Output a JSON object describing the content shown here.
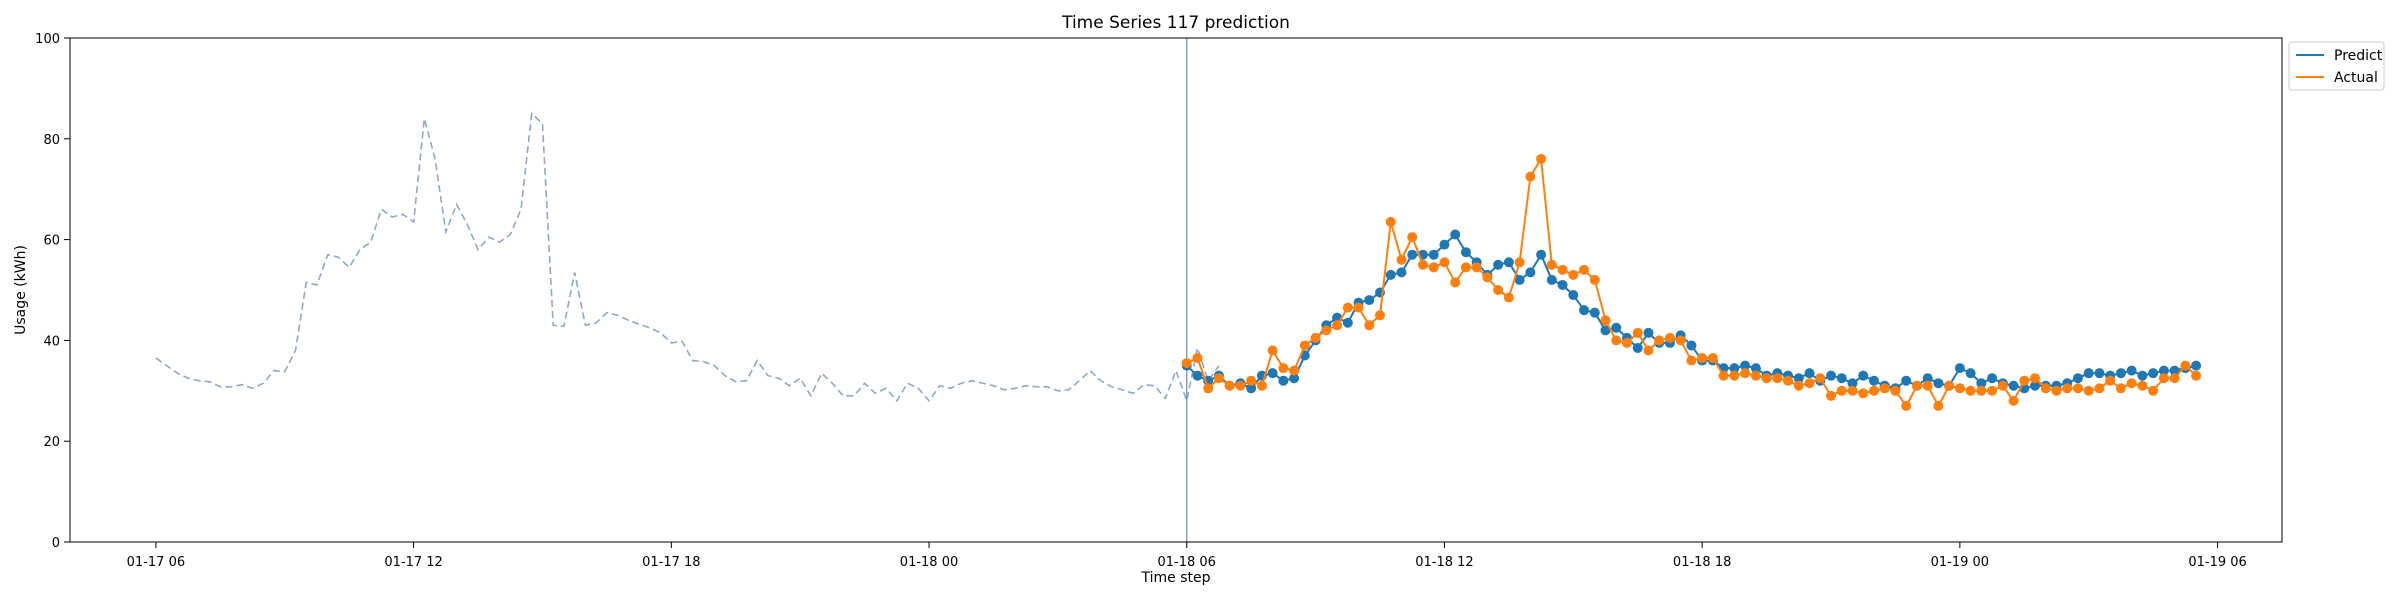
{
  "chart_data": {
    "type": "line",
    "title": "Time Series 117 prediction",
    "xlabel": "Time step",
    "ylabel": "Usage (kWh)",
    "ylim": [
      0,
      100
    ],
    "yticks": [
      0,
      20,
      40,
      60,
      80,
      100
    ],
    "x_unit": "timestamp, hourly ticks every 6 h",
    "xlim": [
      "2024-01-17T04:00",
      "2024-01-19T07:30"
    ],
    "xticks": [
      {
        "t": "2024-01-17T06:00",
        "label": "01-17 06"
      },
      {
        "t": "2024-01-17T12:00",
        "label": "01-17 12"
      },
      {
        "t": "2024-01-17T18:00",
        "label": "01-17 18"
      },
      {
        "t": "2024-01-18T00:00",
        "label": "01-18 00"
      },
      {
        "t": "2024-01-18T06:00",
        "label": "01-18 06"
      },
      {
        "t": "2024-01-18T12:00",
        "label": "01-18 12"
      },
      {
        "t": "2024-01-18T18:00",
        "label": "01-18 18"
      },
      {
        "t": "2024-01-19T00:00",
        "label": "01-19 00"
      },
      {
        "t": "2024-01-19T06:00",
        "label": "01-19 06"
      }
    ],
    "split_time": "2024-01-18T06:00",
    "legend_position": "upper right, outside plot",
    "grid": false,
    "history": {
      "start": "2024-01-17T06:00",
      "step_minutes": 15,
      "style": "dashed",
      "color": "#8fa8c8",
      "values": [
        36.5,
        35.0,
        33.5,
        32.5,
        32.0,
        31.8,
        30.8,
        30.8,
        31.2,
        30.5,
        31.5,
        34.0,
        33.8,
        38.0,
        51.5,
        51.0,
        57.0,
        56.5,
        54.5,
        58.0,
        59.5,
        66.0,
        64.5,
        65.0,
        63.5,
        84.0,
        76.0,
        61.5,
        67.0,
        63.0,
        58.0,
        60.5,
        59.5,
        61.0,
        66.0,
        85.0,
        83.0,
        43.0,
        42.8,
        53.5,
        43.0,
        43.5,
        45.5,
        45.0,
        44.0,
        43.2,
        42.5,
        41.5,
        39.5,
        39.8,
        36.0,
        35.8,
        35.0,
        33.0,
        31.8,
        32.0,
        36.0,
        33.0,
        32.5,
        31.0,
        32.5,
        29.0,
        33.5,
        31.5,
        29.0,
        29.0,
        31.5,
        29.5,
        30.5,
        28.0,
        31.5,
        30.5,
        28.0,
        31.0,
        30.5,
        31.5,
        32.0,
        31.5,
        31.0,
        30.2,
        30.5,
        31.0,
        30.8,
        30.8,
        30.0,
        30.2,
        32.0,
        34.0,
        32.0,
        30.8,
        30.2,
        29.5,
        31.2,
        31.0,
        28.5,
        34.0,
        28.0,
        38.5,
        32.0,
        35.0
      ]
    },
    "x_start": "2024-01-18T06:00",
    "x_step_minutes": 15,
    "series": [
      {
        "name": "Predict",
        "color": "#1f77b4",
        "values": [
          35.0,
          33.0,
          32.0,
          33.0,
          31.0,
          31.5,
          30.5,
          33.0,
          33.5,
          32.0,
          32.5,
          37.0,
          40.0,
          43.0,
          44.5,
          43.5,
          47.5,
          48.0,
          49.5,
          53.0,
          53.5,
          57.0,
          57.0,
          57.0,
          59.0,
          61.0,
          57.5,
          55.5,
          53.0,
          55.0,
          55.5,
          52.0,
          53.5,
          57.0,
          52.0,
          51.0,
          49.0,
          46.0,
          45.5,
          42.0,
          42.5,
          40.5,
          38.5,
          41.5,
          39.5,
          39.5,
          41.0,
          39.0,
          36.0,
          36.0,
          34.5,
          34.5,
          35.0,
          34.5,
          33.0,
          33.5,
          33.0,
          32.5,
          33.5,
          32.0,
          33.0,
          32.5,
          31.5,
          33.0,
          32.0,
          31.0,
          30.5,
          32.0,
          31.0,
          32.5,
          31.5,
          31.0,
          34.5,
          33.5,
          31.5,
          32.5,
          31.5,
          31.0,
          30.5,
          31.0,
          31.0,
          31.0,
          31.5,
          32.5,
          33.5,
          33.5,
          33.0,
          33.5,
          34.0,
          33.0,
          33.5,
          34.0,
          34.0,
          34.5,
          35.0
        ]
      },
      {
        "name": "Actual",
        "color": "#ff7f0e",
        "values": [
          35.5,
          36.5,
          30.5,
          32.5,
          31.0,
          31.0,
          32.0,
          31.0,
          38.0,
          34.5,
          34.0,
          39.0,
          40.5,
          42.0,
          43.0,
          46.5,
          46.5,
          43.0,
          45.0,
          63.5,
          56.0,
          60.5,
          55.0,
          54.5,
          55.5,
          51.5,
          54.5,
          54.5,
          52.5,
          50.0,
          48.5,
          55.5,
          72.5,
          76.0,
          55.0,
          54.0,
          53.0,
          54.0,
          52.0,
          44.0,
          40.0,
          39.5,
          41.5,
          38.0,
          40.0,
          40.5,
          40.0,
          36.0,
          36.5,
          36.5,
          33.0,
          33.0,
          33.5,
          33.0,
          32.5,
          32.5,
          32.0,
          31.0,
          31.5,
          32.5,
          29.0,
          30.0,
          30.0,
          29.5,
          30.0,
          30.5,
          30.0,
          27.0,
          31.0,
          31.0,
          27.0,
          31.0,
          30.5,
          30.0,
          30.0,
          30.0,
          31.0,
          28.0,
          32.0,
          32.5,
          30.5,
          30.0,
          30.5,
          30.5,
          30.0,
          30.5,
          32.0,
          30.5,
          31.5,
          31.0,
          30.0,
          32.5,
          32.5,
          35.0,
          33.0
        ]
      }
    ]
  }
}
